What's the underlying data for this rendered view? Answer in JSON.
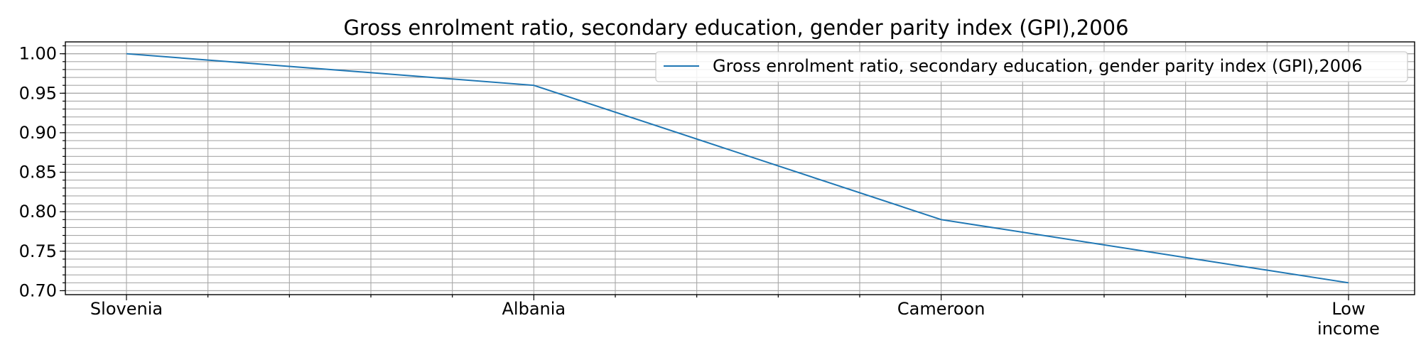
{
  "chart_data": {
    "type": "line",
    "title": "Gross enrolment ratio, secondary education, gender parity index (GPI),2006",
    "xlabel": "",
    "ylabel": "",
    "categories": [
      "Slovenia",
      "Albania",
      "Cameroon",
      "Low income"
    ],
    "category_lines": [
      [
        "Slovenia"
      ],
      [
        "Albania"
      ],
      [
        "Cameroon"
      ],
      [
        "Low",
        "income"
      ]
    ],
    "series": [
      {
        "name": "Gross enrolment ratio, secondary education, gender parity index (GPI),2006",
        "values": [
          1.0,
          0.96,
          0.79,
          0.71
        ],
        "color": "#1f77b4"
      }
    ],
    "ylim": [
      0.695,
      1.015
    ],
    "yticks": [
      "0.70",
      "0.75",
      "0.80",
      "0.85",
      "0.90",
      "0.95",
      "1.00"
    ],
    "grid": true,
    "legend_position": "top-right"
  }
}
